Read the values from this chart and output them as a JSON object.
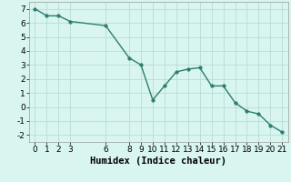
{
  "x": [
    0,
    1,
    2,
    3,
    6,
    8,
    9,
    10,
    11,
    12,
    13,
    14,
    15,
    16,
    17,
    18,
    19,
    20,
    21
  ],
  "y": [
    7.0,
    6.5,
    6.5,
    6.1,
    5.8,
    3.5,
    3.0,
    0.5,
    1.5,
    2.5,
    2.7,
    2.8,
    1.5,
    1.5,
    0.3,
    -0.3,
    -0.5,
    -1.3,
    -1.8
  ],
  "line_color": "#2d7d6f",
  "marker": "o",
  "marker_size": 2.5,
  "bg_color": "#d8f5f0",
  "grid_color": "#b8ddd8",
  "xlabel": "Humidex (Indice chaleur)",
  "xlim": [
    -0.5,
    21.5
  ],
  "ylim": [
    -2.5,
    7.5
  ],
  "xticks": [
    0,
    1,
    2,
    3,
    6,
    8,
    9,
    10,
    11,
    12,
    13,
    14,
    15,
    16,
    17,
    18,
    19,
    20,
    21
  ],
  "yticks": [
    -2,
    -1,
    0,
    1,
    2,
    3,
    4,
    5,
    6,
    7
  ],
  "xlabel_fontsize": 7.5,
  "tick_fontsize": 6.5
}
